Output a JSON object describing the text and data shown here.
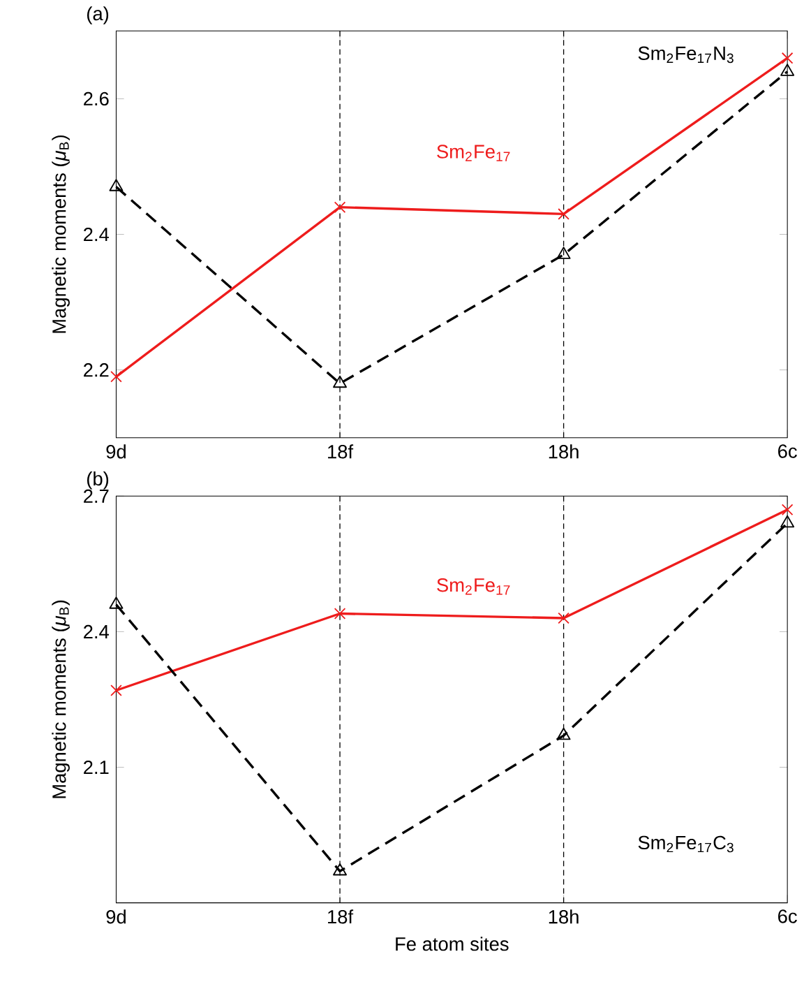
{
  "chart_data": [
    {
      "type": "line",
      "annotations": [
        "(a)"
      ],
      "ylabel": "Magnetic moments (*μ*$_{B}$)",
      "categories": [
        "9d",
        "18f",
        "18h",
        "6c"
      ],
      "ylim": [
        2.1,
        2.7
      ],
      "yticks": [
        2.2,
        2.4,
        2.6
      ],
      "grid": false,
      "legend": false,
      "ref_lines": [
        {
          "axis": "x",
          "value": "18f",
          "color": "#000000",
          "line_style": "dashed"
        },
        {
          "axis": "x",
          "value": "18h",
          "color": "#000000",
          "line_style": "dashed"
        }
      ],
      "series": [
        {
          "name": "Sm$_{2}$Fe$_{17}$",
          "color": "#ee1c1c",
          "marker": "cross",
          "line_style": "solid",
          "values": [
            2.19,
            2.44,
            2.43,
            2.66
          ]
        },
        {
          "name": "Sm$_{2}$Fe$_{17}$N$_{3}$",
          "color": "#000000",
          "marker": "triangle",
          "line_style": "dashed",
          "values": [
            2.47,
            2.18,
            2.37,
            2.64
          ]
        }
      ]
    },
    {
      "type": "line",
      "annotations": [
        "(b)"
      ],
      "ylabel": "Magnetic moments (*μ*$_{B}$)",
      "xlabel": "Fe atom sites",
      "categories": [
        "9d",
        "18f",
        "18h",
        "6c"
      ],
      "ylim": [
        1.8,
        2.7
      ],
      "yticks": [
        2.1,
        2.4,
        2.7
      ],
      "grid": false,
      "legend": false,
      "ref_lines": [
        {
          "axis": "x",
          "value": "18f",
          "color": "#000000",
          "line_style": "dashed"
        },
        {
          "axis": "x",
          "value": "18h",
          "color": "#000000",
          "line_style": "dashed"
        }
      ],
      "series": [
        {
          "name": "Sm$_{2}$Fe$_{17}$",
          "color": "#ee1c1c",
          "marker": "cross",
          "line_style": "solid",
          "values": [
            2.27,
            2.44,
            2.43,
            2.67
          ]
        },
        {
          "name": "Sm$_{2}$Fe$_{17}$C$_{3}$",
          "color": "#000000",
          "marker": "triangle",
          "line_style": "dashed",
          "values": [
            2.46,
            1.87,
            2.17,
            2.64
          ]
        }
      ]
    }
  ]
}
